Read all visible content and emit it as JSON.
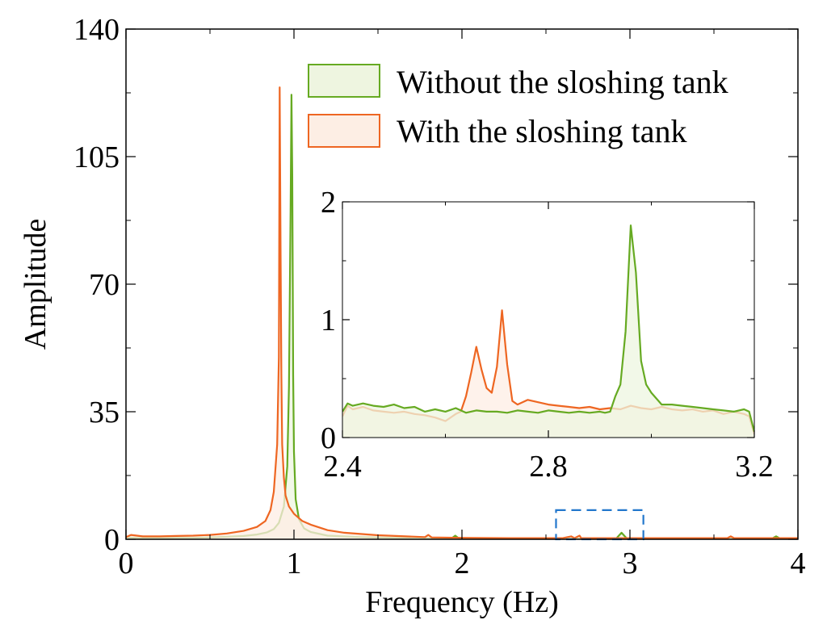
{
  "chart_data": [
    {
      "type": "area",
      "xlabel": "Frequency (Hz)",
      "ylabel": "Amplitude",
      "xlim": [
        0,
        4
      ],
      "ylim": [
        0,
        140
      ],
      "x_ticks": [
        "0",
        "1",
        "2",
        "3",
        "4"
      ],
      "y_ticks": [
        "0",
        "35",
        "70",
        "105",
        "140"
      ],
      "legend_position": "top-right",
      "series": [
        {
          "name": "Without the sloshing tank",
          "color": "#66aa22",
          "fill": "#eef5e0",
          "x": [
            0,
            0.1,
            0.2,
            0.3,
            0.4,
            0.5,
            0.6,
            0.7,
            0.78,
            0.84,
            0.88,
            0.91,
            0.94,
            0.96,
            0.97,
            0.98,
            0.985,
            0.99,
            0.995,
            1.0,
            1.01,
            1.03,
            1.06,
            1.1,
            1.2,
            1.4,
            1.6,
            1.8,
            1.94,
            1.96,
            1.98,
            2.2,
            2.5,
            2.8,
            2.92,
            2.95,
            2.98,
            3.2,
            3.5,
            3.85,
            3.87,
            3.89,
            4.0
          ],
          "y": [
            0.5,
            0.3,
            0.3,
            0.4,
            0.4,
            0.5,
            0.7,
            0.9,
            1.3,
            1.9,
            2.8,
            4.5,
            9,
            20,
            42,
            90,
            122,
            100,
            45,
            24,
            11,
            5.5,
            3,
            2,
            1,
            0.6,
            0.4,
            0.3,
            0.3,
            1.0,
            0.3,
            0.3,
            0.2,
            0.2,
            0.3,
            1.8,
            0.3,
            0.2,
            0.2,
            0.3,
            0.8,
            0.3,
            0.2
          ]
        },
        {
          "name": "With the sloshing tank",
          "color": "#ee6622",
          "fill": "#fdeee4",
          "x": [
            0,
            0.03,
            0.1,
            0.2,
            0.3,
            0.4,
            0.5,
            0.6,
            0.7,
            0.78,
            0.83,
            0.86,
            0.88,
            0.9,
            0.91,
            0.915,
            0.92,
            0.925,
            0.93,
            0.94,
            0.95,
            0.97,
            1.0,
            1.05,
            1.1,
            1.2,
            1.3,
            1.5,
            1.78,
            1.8,
            1.82,
            2.0,
            2.3,
            2.6,
            2.65,
            2.67,
            2.7,
            2.71,
            2.75,
            2.9,
            3.2,
            3.58,
            3.6,
            3.62,
            4.0
          ],
          "y": [
            0.6,
            1.2,
            0.8,
            0.8,
            0.9,
            1.0,
            1.2,
            1.6,
            2.3,
            3.4,
            5,
            8,
            13,
            26,
            50,
            124,
            80,
            45,
            26,
            17,
            12,
            9,
            7,
            5,
            4,
            2.5,
            1.8,
            1.1,
            0.6,
            1.2,
            0.5,
            0.4,
            0.3,
            0.3,
            0.8,
            0.3,
            1.0,
            0.3,
            0.3,
            0.3,
            0.3,
            0.3,
            0.8,
            0.3,
            0.3
          ]
        }
      ],
      "zoom_box": {
        "x": [
          2.56,
          3.08
        ],
        "y": [
          0,
          8
        ]
      }
    },
    {
      "type": "area",
      "role": "inset",
      "xlim": [
        2.4,
        3.2
      ],
      "ylim": [
        0,
        2
      ],
      "x_ticks": [
        "2.4",
        "2.8",
        "3.2"
      ],
      "y_ticks": [
        "0",
        "1",
        "2"
      ],
      "series": [
        {
          "name": "Without the sloshing tank",
          "color": "#66aa22",
          "fill": "#eef5e0",
          "x": [
            2.4,
            2.41,
            2.42,
            2.44,
            2.46,
            2.48,
            2.5,
            2.52,
            2.54,
            2.56,
            2.58,
            2.6,
            2.62,
            2.64,
            2.66,
            2.68,
            2.7,
            2.72,
            2.74,
            2.76,
            2.78,
            2.8,
            2.82,
            2.84,
            2.86,
            2.88,
            2.9,
            2.91,
            2.92,
            2.93,
            2.94,
            2.95,
            2.96,
            2.97,
            2.98,
            2.99,
            3.0,
            3.02,
            3.04,
            3.06,
            3.08,
            3.1,
            3.12,
            3.14,
            3.16,
            3.18,
            3.19,
            3.2
          ],
          "y": [
            0.22,
            0.29,
            0.27,
            0.29,
            0.27,
            0.26,
            0.28,
            0.25,
            0.26,
            0.22,
            0.24,
            0.22,
            0.25,
            0.21,
            0.23,
            0.22,
            0.22,
            0.21,
            0.23,
            0.22,
            0.21,
            0.23,
            0.22,
            0.21,
            0.22,
            0.21,
            0.22,
            0.21,
            0.22,
            0.35,
            0.45,
            0.9,
            1.8,
            1.4,
            0.65,
            0.45,
            0.38,
            0.28,
            0.28,
            0.27,
            0.26,
            0.25,
            0.24,
            0.23,
            0.22,
            0.24,
            0.22,
            0.05
          ]
        },
        {
          "name": "With the sloshing tank",
          "color": "#ee6622",
          "fill": "#fdeee4",
          "x": [
            2.4,
            2.41,
            2.42,
            2.44,
            2.46,
            2.48,
            2.5,
            2.52,
            2.54,
            2.56,
            2.58,
            2.6,
            2.62,
            2.63,
            2.64,
            2.65,
            2.66,
            2.67,
            2.68,
            2.69,
            2.7,
            2.71,
            2.72,
            2.73,
            2.74,
            2.76,
            2.78,
            2.8,
            2.82,
            2.84,
            2.86,
            2.88,
            2.9,
            2.92,
            2.94,
            2.96,
            2.98,
            3.0,
            3.02,
            3.04,
            3.06,
            3.08,
            3.1,
            3.12,
            3.14,
            3.16,
            3.18,
            3.19,
            3.2
          ],
          "y": [
            0.18,
            0.27,
            0.24,
            0.26,
            0.23,
            0.22,
            0.21,
            0.22,
            0.2,
            0.19,
            0.17,
            0.14,
            0.2,
            0.22,
            0.35,
            0.55,
            0.77,
            0.58,
            0.42,
            0.38,
            0.6,
            1.08,
            0.62,
            0.31,
            0.28,
            0.32,
            0.3,
            0.28,
            0.27,
            0.26,
            0.25,
            0.26,
            0.24,
            0.25,
            0.24,
            0.27,
            0.25,
            0.24,
            0.26,
            0.24,
            0.23,
            0.24,
            0.22,
            0.23,
            0.2,
            0.22,
            0.2,
            0.18,
            0.03
          ]
        }
      ]
    }
  ],
  "colors": {
    "without": "#66aa22",
    "with": "#ee6622",
    "zoom_box": "#2277cc",
    "overlap_fill": "#e8dcc0"
  }
}
